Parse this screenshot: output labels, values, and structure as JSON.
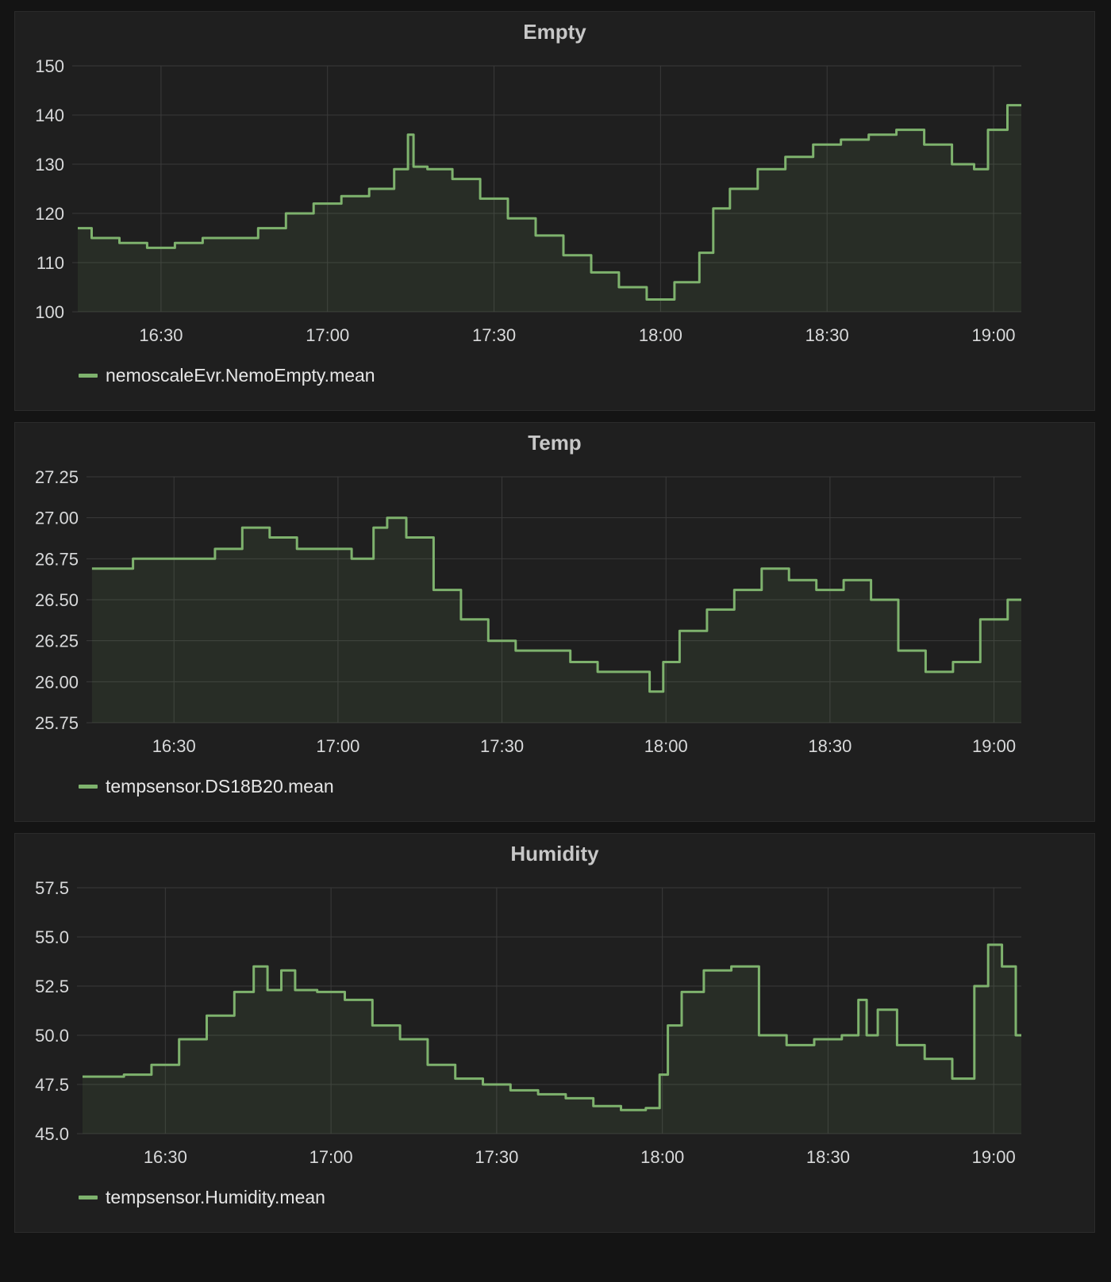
{
  "colors": {
    "series": "#7eb26d",
    "fill": "rgba(126,178,109,0.10)",
    "grid": "#3a3a3a",
    "panel": "#1f1f1f",
    "background": "#141414",
    "text": "#d8d9da"
  },
  "chart_data": [
    {
      "type": "area",
      "title": "Empty",
      "ylim": [
        100,
        150
      ],
      "yticks": [
        "100",
        "110",
        "120",
        "130",
        "140",
        "150"
      ],
      "ytick_values": [
        100,
        110,
        120,
        130,
        140,
        150
      ],
      "xlim_minutes": [
        16.25,
        19.083
      ],
      "xticks": [
        "16:30",
        "17:00",
        "17:30",
        "18:00",
        "18:30",
        "19:00"
      ],
      "grid": true,
      "legend_position": "bottom-left",
      "series": [
        {
          "name": "nemoscaleEvr.NemoEmpty.mean",
          "x": [
            "16:15",
            "16:20",
            "16:25",
            "16:30",
            "16:35",
            "16:40",
            "16:45",
            "16:50",
            "16:55",
            "17:00",
            "17:05",
            "17:10",
            "17:14",
            "17:15",
            "17:16",
            "17:20",
            "17:25",
            "17:30",
            "17:35",
            "17:40",
            "17:45",
            "17:50",
            "17:55",
            "18:00",
            "18:05",
            "18:09",
            "18:10",
            "18:15",
            "18:20",
            "18:25",
            "18:30",
            "18:35",
            "18:40",
            "18:45",
            "18:50",
            "18:55",
            "18:58",
            "19:00",
            "19:05"
          ],
          "values": [
            117,
            115,
            114,
            113,
            114,
            115,
            115,
            117,
            120,
            122,
            123.5,
            125,
            129,
            136,
            129.5,
            129,
            127,
            123,
            119,
            115.5,
            111.5,
            108,
            105,
            102.5,
            106,
            112,
            121,
            125,
            129,
            131.5,
            134,
            135,
            136,
            137,
            134,
            130,
            129,
            137,
            142
          ]
        }
      ]
    },
    {
      "type": "area",
      "title": "Temp",
      "ylim": [
        25.75,
        27.25
      ],
      "yticks": [
        "25.75",
        "26.00",
        "26.25",
        "26.50",
        "26.75",
        "27.00",
        "27.25"
      ],
      "ytick_values": [
        25.75,
        26.0,
        26.25,
        26.5,
        26.75,
        27.0,
        27.25
      ],
      "xticks": [
        "16:30",
        "17:00",
        "17:30",
        "18:00",
        "18:30",
        "19:00"
      ],
      "grid": true,
      "legend_position": "bottom-left",
      "series": [
        {
          "name": "tempsensor.DS18B20.mean",
          "x": [
            "16:15",
            "16:20",
            "16:25",
            "16:30",
            "16:35",
            "16:40",
            "16:45",
            "16:50",
            "16:55",
            "17:00",
            "17:05",
            "17:08",
            "17:10",
            "17:15",
            "17:20",
            "17:25",
            "17:30",
            "17:35",
            "17:40",
            "17:45",
            "17:50",
            "17:55",
            "17:59",
            "18:00",
            "18:05",
            "18:10",
            "18:15",
            "18:20",
            "18:25",
            "18:30",
            "18:35",
            "18:40",
            "18:45",
            "18:50",
            "18:55",
            "19:00",
            "19:05"
          ],
          "values": [
            26.69,
            26.69,
            26.75,
            26.75,
            26.75,
            26.81,
            26.94,
            26.88,
            26.81,
            26.81,
            26.75,
            26.94,
            27.0,
            26.88,
            26.56,
            26.38,
            26.25,
            26.19,
            26.19,
            26.12,
            26.06,
            26.06,
            25.94,
            26.12,
            26.31,
            26.44,
            26.56,
            26.69,
            26.62,
            26.56,
            26.62,
            26.5,
            26.19,
            26.06,
            26.12,
            26.38,
            26.5
          ]
        }
      ]
    },
    {
      "type": "area",
      "title": "Humidity",
      "ylim": [
        45.0,
        57.5
      ],
      "yticks": [
        "45.0",
        "47.5",
        "50.0",
        "52.5",
        "55.0",
        "57.5"
      ],
      "ytick_values": [
        45.0,
        47.5,
        50.0,
        52.5,
        55.0,
        57.5
      ],
      "xticks": [
        "16:30",
        "17:00",
        "17:30",
        "18:00",
        "18:30",
        "19:00"
      ],
      "grid": true,
      "legend_position": "bottom-left",
      "series": [
        {
          "name": "tempsensor.Humidity.mean",
          "x": [
            "16:15",
            "16:20",
            "16:25",
            "16:30",
            "16:35",
            "16:40",
            "16:45",
            "16:47",
            "16:50",
            "16:52",
            "16:55",
            "17:00",
            "17:05",
            "17:10",
            "17:15",
            "17:20",
            "17:25",
            "17:30",
            "17:35",
            "17:40",
            "17:45",
            "17:50",
            "17:55",
            "17:59",
            "18:00",
            "18:02",
            "18:05",
            "18:10",
            "18:15",
            "18:20",
            "18:25",
            "18:30",
            "18:35",
            "18:36",
            "18:38",
            "18:40",
            "18:45",
            "18:50",
            "18:55",
            "18:58",
            "19:00",
            "19:03",
            "19:05"
          ],
          "values": [
            47.9,
            47.9,
            48.0,
            48.5,
            49.8,
            51.0,
            52.2,
            53.5,
            52.3,
            53.3,
            52.3,
            52.2,
            51.8,
            50.5,
            49.8,
            48.5,
            47.8,
            47.5,
            47.2,
            47.0,
            46.8,
            46.4,
            46.2,
            46.3,
            48.0,
            50.5,
            52.2,
            53.3,
            53.5,
            50.0,
            49.5,
            49.8,
            50.0,
            51.8,
            50.0,
            51.3,
            49.5,
            48.8,
            47.8,
            52.5,
            54.6,
            53.5,
            50.0
          ]
        }
      ]
    }
  ]
}
